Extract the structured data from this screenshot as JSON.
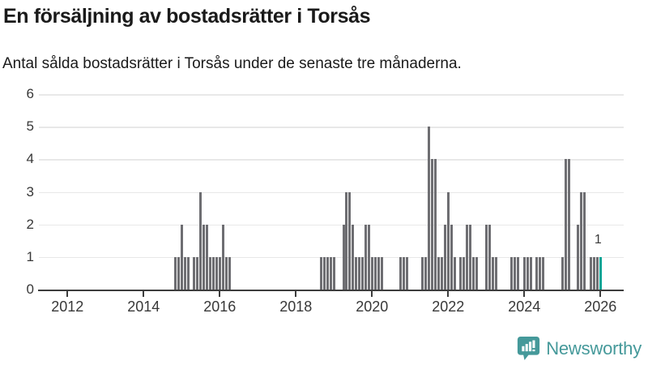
{
  "title": "En försäljning av bostadsrätter i Torsås",
  "subtitle": "Antal sålda bostadsrätter i Torsås under de senaste tre månaderna.",
  "logo": {
    "text": "Newsworthy"
  },
  "colors": {
    "bar": "#6e6e72",
    "highlight": "#00a596",
    "grid": "#e8e8e8",
    "axis": "#3d3d3d",
    "text": "#1a1a1a",
    "tick_text": "#383838",
    "logo_teal": "#45999a"
  },
  "chart_data": {
    "type": "bar",
    "title": "En försäljning av bostadsrätter i Torsås",
    "subtitle": "Antal sålda bostadsrätter i Torsås under de senaste tre månaderna.",
    "grid": true,
    "legend": "none",
    "x_axis": {
      "start": "2011-04",
      "end": "2026-07",
      "tick_years": [
        2012,
        2014,
        2016,
        2018,
        2020,
        2022,
        2024,
        2026
      ]
    },
    "y_axis": {
      "min": 0,
      "max": 6,
      "ticks": [
        0,
        1,
        2,
        3,
        4,
        5,
        6
      ]
    },
    "highlight_month": "2026-01",
    "highlight_label": "1",
    "months": {
      "2014-11": 1,
      "2014-12": 1,
      "2015-01": 2,
      "2015-02": 1,
      "2015-03": 1,
      "2015-05": 1,
      "2015-06": 1,
      "2015-07": 3,
      "2015-08": 2,
      "2015-09": 2,
      "2015-10": 1,
      "2015-11": 1,
      "2015-12": 1,
      "2016-01": 1,
      "2016-02": 2,
      "2016-03": 1,
      "2016-04": 1,
      "2018-09": 1,
      "2018-10": 1,
      "2018-11": 1,
      "2018-12": 1,
      "2019-01": 1,
      "2019-04": 2,
      "2019-05": 3,
      "2019-06": 3,
      "2019-07": 2,
      "2019-08": 1,
      "2019-09": 1,
      "2019-10": 1,
      "2019-11": 2,
      "2019-12": 2,
      "2020-01": 1,
      "2020-02": 1,
      "2020-03": 1,
      "2020-04": 1,
      "2020-10": 1,
      "2020-11": 1,
      "2020-12": 1,
      "2021-05": 1,
      "2021-06": 1,
      "2021-07": 5,
      "2021-08": 4,
      "2021-09": 4,
      "2021-10": 1,
      "2021-11": 1,
      "2021-12": 2,
      "2022-01": 3,
      "2022-02": 2,
      "2022-03": 1,
      "2022-05": 1,
      "2022-06": 1,
      "2022-07": 2,
      "2022-08": 2,
      "2022-09": 1,
      "2022-10": 1,
      "2023-01": 2,
      "2023-02": 2,
      "2023-03": 1,
      "2023-04": 1,
      "2023-09": 1,
      "2023-10": 1,
      "2023-11": 1,
      "2024-01": 1,
      "2024-02": 1,
      "2024-03": 1,
      "2024-05": 1,
      "2024-06": 1,
      "2024-07": 1,
      "2025-01": 1,
      "2025-02": 4,
      "2025-03": 4,
      "2025-06": 2,
      "2025-07": 3,
      "2025-08": 3,
      "2025-10": 1,
      "2025-11": 1,
      "2025-12": 1,
      "2026-01": 1
    }
  }
}
